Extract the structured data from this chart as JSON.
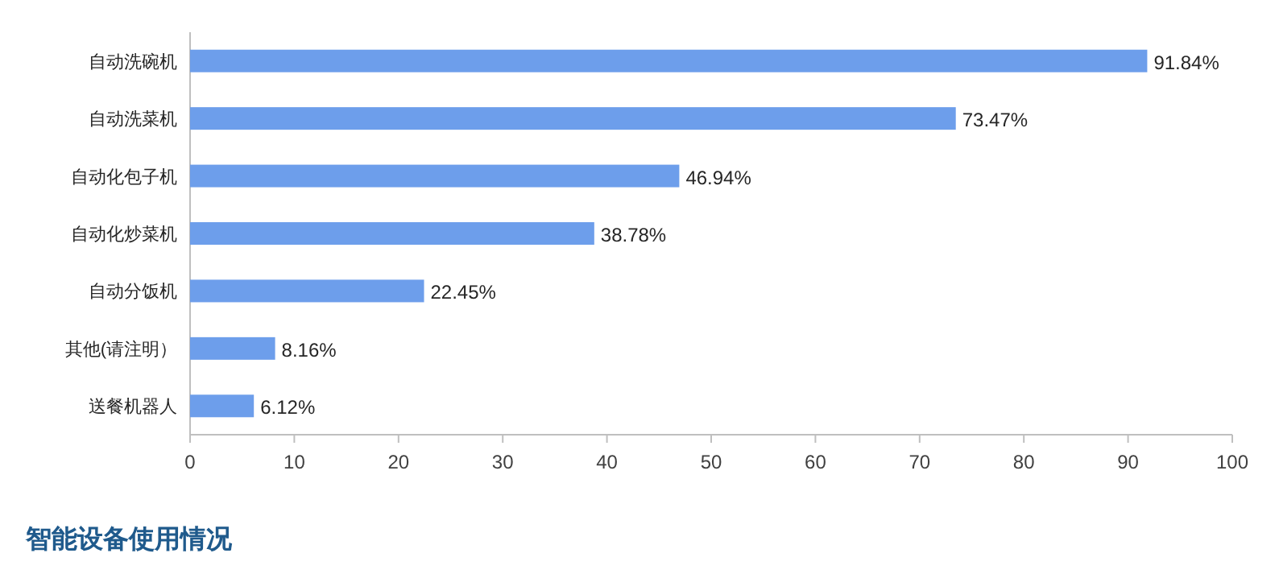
{
  "chart_data": {
    "type": "bar",
    "orientation": "horizontal",
    "title": "智能设备使用情况",
    "categories": [
      "自动洗碗机",
      "自动洗菜机",
      "自动化包子机",
      "自动化炒菜机",
      "自动分饭机",
      "其他(请注明）",
      "送餐机器人"
    ],
    "values": [
      91.84,
      73.47,
      46.94,
      38.78,
      22.45,
      8.16,
      6.12
    ],
    "value_labels": [
      "91.84%",
      "73.47%",
      "46.94%",
      "38.78%",
      "22.45%",
      "8.16%",
      "6.12%"
    ],
    "color": "#6d9eeb",
    "xlim": [
      0,
      100
    ],
    "xticks": [
      0,
      10,
      20,
      30,
      40,
      50,
      60,
      70,
      80,
      90,
      100
    ],
    "grid": false
  }
}
